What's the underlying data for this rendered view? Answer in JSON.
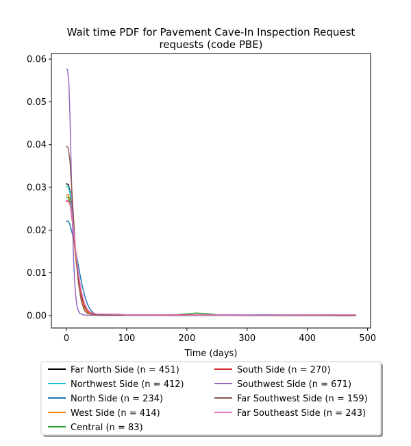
{
  "chart_data": {
    "type": "line",
    "title_lines": [
      "Wait time PDF for Pavement Cave-In Inspection Request",
      "requests (code PBE)"
    ],
    "xlabel": "Time (days)",
    "ylabel": "",
    "xlim": [
      -25,
      505
    ],
    "ylim": [
      -0.0029,
      0.0613
    ],
    "xticks": [
      0,
      100,
      200,
      300,
      400,
      500
    ],
    "yticks": [
      0.0,
      0.01,
      0.02,
      0.03,
      0.04,
      0.05,
      0.06
    ],
    "ytick_labels": [
      "0.00",
      "0.01",
      "0.02",
      "0.03",
      "0.04",
      "0.05",
      "0.06"
    ],
    "grid": false,
    "legend_position": "below",
    "legend_columns": 2,
    "series": [
      {
        "name": "Far North Side (n = 451)",
        "color": "#000000",
        "points": [
          [
            0,
            0.0308
          ],
          [
            3,
            0.0307
          ],
          [
            6,
            0.029
          ],
          [
            10,
            0.023
          ],
          [
            15,
            0.0145
          ],
          [
            20,
            0.0085
          ],
          [
            25,
            0.0045
          ],
          [
            30,
            0.0022
          ],
          [
            35,
            0.0011
          ],
          [
            40,
            0.0005
          ],
          [
            50,
            0.0002
          ],
          [
            80,
            0.0001
          ],
          [
            150,
            0.0001
          ],
          [
            300,
            0.0
          ],
          [
            480,
            0.0
          ]
        ]
      },
      {
        "name": "Northwest Side (n = 412)",
        "color": "#17becf",
        "points": [
          [
            0,
            0.0301
          ],
          [
            3,
            0.0303
          ],
          [
            6,
            0.0285
          ],
          [
            10,
            0.0225
          ],
          [
            15,
            0.014
          ],
          [
            20,
            0.0078
          ],
          [
            25,
            0.0038
          ],
          [
            30,
            0.0018
          ],
          [
            35,
            0.0008
          ],
          [
            40,
            0.0004
          ],
          [
            50,
            0.0002
          ],
          [
            80,
            0.0001
          ],
          [
            200,
            0.0
          ],
          [
            480,
            0.0
          ]
        ]
      },
      {
        "name": "North Side (n = 234)",
        "color": "#1f77b4",
        "points": [
          [
            0,
            0.0221
          ],
          [
            3,
            0.0221
          ],
          [
            6,
            0.0212
          ],
          [
            10,
            0.019
          ],
          [
            15,
            0.0155
          ],
          [
            20,
            0.0115
          ],
          [
            25,
            0.0078
          ],
          [
            30,
            0.0048
          ],
          [
            35,
            0.0026
          ],
          [
            40,
            0.0013
          ],
          [
            45,
            0.0006
          ],
          [
            50,
            0.0003
          ],
          [
            80,
            0.0001
          ],
          [
            200,
            0.0
          ],
          [
            330,
            0.0002
          ],
          [
            400,
            0.0001
          ],
          [
            480,
            0.0001
          ]
        ]
      },
      {
        "name": "West Side (n = 414)",
        "color": "#ff7f0e",
        "points": [
          [
            0,
            0.0281
          ],
          [
            3,
            0.0283
          ],
          [
            6,
            0.027
          ],
          [
            10,
            0.022
          ],
          [
            15,
            0.014
          ],
          [
            20,
            0.0078
          ],
          [
            25,
            0.0038
          ],
          [
            30,
            0.0017
          ],
          [
            35,
            0.0008
          ],
          [
            40,
            0.0004
          ],
          [
            50,
            0.0002
          ],
          [
            100,
            0.0001
          ],
          [
            480,
            0.0
          ]
        ]
      },
      {
        "name": "Central (n = 83)",
        "color": "#2ca02c",
        "points": [
          [
            0,
            0.0276
          ],
          [
            3,
            0.0277
          ],
          [
            6,
            0.0265
          ],
          [
            10,
            0.022
          ],
          [
            15,
            0.015
          ],
          [
            20,
            0.0092
          ],
          [
            25,
            0.0052
          ],
          [
            30,
            0.0026
          ],
          [
            35,
            0.0012
          ],
          [
            40,
            0.0006
          ],
          [
            50,
            0.0003
          ],
          [
            100,
            0.0002
          ],
          [
            150,
            0.0001
          ],
          [
            180,
            0.0002
          ],
          [
            200,
            0.0004
          ],
          [
            215,
            0.0006
          ],
          [
            230,
            0.0005
          ],
          [
            250,
            0.0002
          ],
          [
            280,
            0.0001
          ],
          [
            480,
            0.0
          ]
        ]
      },
      {
        "name": "South Side (n = 270)",
        "color": "#d62728",
        "points": [
          [
            0,
            0.0267
          ],
          [
            3,
            0.0268
          ],
          [
            6,
            0.026
          ],
          [
            10,
            0.022
          ],
          [
            15,
            0.015
          ],
          [
            20,
            0.0092
          ],
          [
            25,
            0.005
          ],
          [
            30,
            0.0025
          ],
          [
            35,
            0.0012
          ],
          [
            40,
            0.0006
          ],
          [
            50,
            0.0003
          ],
          [
            100,
            0.0002
          ],
          [
            200,
            0.0002
          ],
          [
            300,
            0.0001
          ],
          [
            480,
            0.0002
          ]
        ]
      },
      {
        "name": "Southwest Side (n = 671)",
        "color": "#9467bd",
        "points": [
          [
            0,
            0.0577
          ],
          [
            2,
            0.0575
          ],
          [
            4,
            0.0545
          ],
          [
            6,
            0.046
          ],
          [
            8,
            0.034
          ],
          [
            10,
            0.022
          ],
          [
            12,
            0.0125
          ],
          [
            15,
            0.005
          ],
          [
            18,
            0.0018
          ],
          [
            22,
            0.0005
          ],
          [
            30,
            0.0001
          ],
          [
            60,
            0.0
          ],
          [
            280,
            0.0002
          ],
          [
            300,
            0.0001
          ],
          [
            480,
            0.0
          ]
        ]
      },
      {
        "name": "Far Southwest Side (n = 159)",
        "color": "#8c564b",
        "points": [
          [
            0,
            0.0396
          ],
          [
            3,
            0.0392
          ],
          [
            6,
            0.036
          ],
          [
            10,
            0.027
          ],
          [
            15,
            0.0155
          ],
          [
            20,
            0.0075
          ],
          [
            25,
            0.0032
          ],
          [
            30,
            0.0012
          ],
          [
            35,
            0.0005
          ],
          [
            45,
            0.0002
          ],
          [
            80,
            0.0001
          ],
          [
            480,
            0.0
          ]
        ]
      },
      {
        "name": "Far Southeast Side (n = 243)",
        "color": "#e377c2",
        "points": [
          [
            0,
            0.0269
          ],
          [
            3,
            0.027
          ],
          [
            6,
            0.0262
          ],
          [
            10,
            0.0225
          ],
          [
            15,
            0.0158
          ],
          [
            20,
            0.0098
          ],
          [
            25,
            0.0055
          ],
          [
            30,
            0.0028
          ],
          [
            35,
            0.0014
          ],
          [
            40,
            0.0007
          ],
          [
            50,
            0.0004
          ],
          [
            90,
            0.0003
          ],
          [
            100,
            0.0002
          ],
          [
            200,
            0.0001
          ],
          [
            300,
            0.0001
          ],
          [
            480,
            0.0002
          ]
        ]
      }
    ]
  }
}
